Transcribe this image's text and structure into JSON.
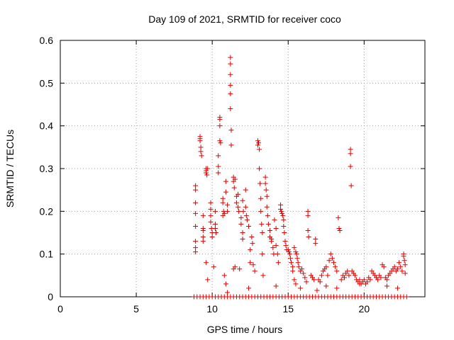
{
  "chart_data": {
    "type": "scatter",
    "title": "Day 109 of 2021, SRMTID for receiver coco",
    "xlabel": "GPS time / hours",
    "ylabel": "SRMTID / TECUs",
    "xlim": [
      0,
      24
    ],
    "ylim": [
      0,
      0.6
    ],
    "xticks": [
      0,
      5,
      10,
      15,
      20
    ],
    "xtick_labels": [
      "0",
      "5",
      "10",
      "15",
      "20"
    ],
    "yticks": [
      0,
      0.1,
      0.2,
      0.3,
      0.4,
      0.5,
      0.6
    ],
    "ytick_labels": [
      "0",
      "0.1",
      "0.2",
      "0.3",
      "0.4",
      "0.5",
      "0.6"
    ],
    "grid": true,
    "marker": "+",
    "color": "#e00000",
    "series": [
      {
        "name": "SRMTID",
        "points": [
          [
            8.9,
            0.26
          ],
          [
            8.9,
            0.25
          ],
          [
            8.9,
            0.22
          ],
          [
            8.9,
            0.195
          ],
          [
            8.9,
            0.165
          ],
          [
            8.9,
            0.13
          ],
          [
            8.9,
            0.115
          ],
          [
            8.9,
            0.105
          ],
          [
            9.2,
            0.375
          ],
          [
            9.2,
            0.37
          ],
          [
            9.2,
            0.365
          ],
          [
            9.25,
            0.35
          ],
          [
            9.25,
            0.34
          ],
          [
            9.3,
            0.33
          ],
          [
            9.4,
            0.19
          ],
          [
            9.4,
            0.16
          ],
          [
            9.4,
            0.155
          ],
          [
            9.4,
            0.14
          ],
          [
            9.4,
            0.13
          ],
          [
            9.6,
            0.3
          ],
          [
            9.6,
            0.295
          ],
          [
            9.6,
            0.29
          ],
          [
            9.65,
            0.285
          ],
          [
            9.7,
            0.3
          ],
          [
            9.6,
            0.08
          ],
          [
            9.9,
            0.22
          ],
          [
            9.9,
            0.205
          ],
          [
            9.9,
            0.19
          ],
          [
            9.9,
            0.175
          ],
          [
            9.95,
            0.16
          ],
          [
            10.0,
            0.15
          ],
          [
            10.0,
            0.14
          ],
          [
            10.1,
            0.07
          ],
          [
            10.2,
            0.2
          ],
          [
            10.2,
            0.17
          ],
          [
            10.2,
            0.16
          ],
          [
            10.25,
            0.15
          ],
          [
            10.4,
            0.33
          ],
          [
            10.4,
            0.305
          ],
          [
            10.4,
            0.29
          ],
          [
            10.5,
            0.42
          ],
          [
            10.5,
            0.415
          ],
          [
            10.5,
            0.4
          ],
          [
            10.5,
            0.365
          ],
          [
            10.55,
            0.36
          ],
          [
            10.7,
            0.23
          ],
          [
            10.7,
            0.22
          ],
          [
            10.75,
            0.2
          ],
          [
            10.7,
            0.19
          ],
          [
            10.8,
            0.195
          ],
          [
            10.8,
            0.05
          ],
          [
            10.9,
            0.27
          ],
          [
            10.9,
            0.245
          ],
          [
            11.0,
            0.215
          ],
          [
            11.0,
            0.2
          ],
          [
            11.0,
            0.01
          ],
          [
            11.2,
            0.56
          ],
          [
            11.2,
            0.545
          ],
          [
            11.2,
            0.52
          ],
          [
            11.2,
            0.495
          ],
          [
            11.2,
            0.475
          ],
          [
            11.2,
            0.44
          ],
          [
            11.25,
            0.39
          ],
          [
            11.25,
            0.355
          ],
          [
            11.4,
            0.28
          ],
          [
            11.4,
            0.27
          ],
          [
            11.45,
            0.255
          ],
          [
            11.5,
            0.275
          ],
          [
            11.5,
            0.07
          ],
          [
            11.4,
            0.065
          ],
          [
            11.6,
            0.235
          ],
          [
            11.6,
            0.22
          ],
          [
            11.7,
            0.24
          ],
          [
            11.7,
            0.21
          ],
          [
            11.75,
            0.2
          ],
          [
            11.8,
            0.065
          ],
          [
            11.9,
            0.185
          ],
          [
            11.9,
            0.17
          ],
          [
            12.0,
            0.15
          ],
          [
            12.0,
            0.135
          ],
          [
            12.0,
            0.225
          ],
          [
            12.05,
            0.2
          ],
          [
            12.2,
            0.25
          ],
          [
            12.2,
            0.21
          ],
          [
            12.25,
            0.19
          ],
          [
            12.3,
            0.18
          ],
          [
            12.4,
            0.165
          ],
          [
            12.5,
            0.11
          ],
          [
            12.5,
            0.08
          ],
          [
            12.6,
            0.14
          ],
          [
            12.65,
            0.125
          ],
          [
            12.7,
            0.075
          ],
          [
            12.8,
            0.06
          ],
          [
            13.0,
            0.365
          ],
          [
            13.0,
            0.355
          ],
          [
            13.05,
            0.36
          ],
          [
            13.1,
            0.345
          ],
          [
            13.1,
            0.3
          ],
          [
            13.15,
            0.265
          ],
          [
            13.2,
            0.23
          ],
          [
            13.2,
            0.2
          ],
          [
            13.25,
            0.17
          ],
          [
            13.3,
            0.15
          ],
          [
            13.3,
            0.1
          ],
          [
            13.35,
            0.05
          ],
          [
            13.5,
            0.28
          ],
          [
            13.5,
            0.265
          ],
          [
            13.55,
            0.25
          ],
          [
            13.6,
            0.235
          ],
          [
            13.6,
            0.21
          ],
          [
            13.65,
            0.19
          ],
          [
            13.7,
            0.17
          ],
          [
            13.8,
            0.155
          ],
          [
            13.8,
            0.14
          ],
          [
            13.9,
            0.135
          ],
          [
            13.9,
            0.13
          ],
          [
            14.0,
            0.115
          ],
          [
            14.05,
            0.1
          ],
          [
            14.1,
            0.18
          ],
          [
            14.2,
            0.16
          ],
          [
            14.2,
            0.12
          ],
          [
            14.3,
            0.1
          ],
          [
            14.35,
            0.08
          ],
          [
            14.5,
            0.215
          ],
          [
            14.5,
            0.205
          ],
          [
            14.55,
            0.2
          ],
          [
            14.6,
            0.195
          ],
          [
            14.65,
            0.19
          ],
          [
            14.7,
            0.18
          ],
          [
            14.7,
            0.165
          ],
          [
            14.75,
            0.15
          ],
          [
            14.8,
            0.13
          ],
          [
            14.85,
            0.12
          ],
          [
            14.9,
            0.11
          ],
          [
            15.0,
            0.11
          ],
          [
            15.05,
            0.105
          ],
          [
            15.1,
            0.1
          ],
          [
            15.15,
            0.09
          ],
          [
            15.2,
            0.08
          ],
          [
            15.3,
            0.07
          ],
          [
            15.3,
            0.06
          ],
          [
            15.4,
            0.04
          ],
          [
            15.5,
            0.03
          ],
          [
            15.4,
            0.115
          ],
          [
            15.5,
            0.105
          ],
          [
            15.55,
            0.1
          ],
          [
            15.6,
            0.09
          ],
          [
            15.65,
            0.08
          ],
          [
            15.7,
            0.07
          ],
          [
            15.8,
            0.06
          ],
          [
            15.9,
            0.065
          ],
          [
            16.0,
            0.055
          ],
          [
            16.1,
            0.045
          ],
          [
            16.2,
            0.035
          ],
          [
            16.3,
            0.2
          ],
          [
            16.3,
            0.19
          ],
          [
            16.3,
            0.155
          ],
          [
            16.35,
            0.14
          ],
          [
            16.5,
            0.05
          ],
          [
            16.6,
            0.045
          ],
          [
            16.7,
            0.04
          ],
          [
            16.8,
            0.135
          ],
          [
            16.8,
            0.125
          ],
          [
            17.0,
            0.04
          ],
          [
            17.1,
            0.035
          ],
          [
            17.2,
            0.05
          ],
          [
            17.3,
            0.06
          ],
          [
            17.4,
            0.065
          ],
          [
            17.5,
            0.07
          ],
          [
            17.6,
            0.05
          ],
          [
            17.7,
            0.085
          ],
          [
            17.8,
            0.1
          ],
          [
            17.9,
            0.09
          ],
          [
            18.0,
            0.08
          ],
          [
            18.1,
            0.07
          ],
          [
            18.2,
            0.06
          ],
          [
            18.3,
            0.185
          ],
          [
            18.35,
            0.16
          ],
          [
            18.4,
            0.155
          ],
          [
            18.5,
            0.04
          ],
          [
            18.6,
            0.05
          ],
          [
            18.7,
            0.045
          ],
          [
            18.8,
            0.055
          ],
          [
            18.9,
            0.06
          ],
          [
            19.0,
            0.05
          ],
          [
            19.1,
            0.345
          ],
          [
            19.1,
            0.335
          ],
          [
            19.1,
            0.305
          ],
          [
            19.15,
            0.26
          ],
          [
            19.2,
            0.06
          ],
          [
            19.3,
            0.055
          ],
          [
            19.4,
            0.05
          ],
          [
            19.5,
            0.04
          ],
          [
            19.6,
            0.035
          ],
          [
            19.7,
            0.04
          ],
          [
            19.8,
            0.03
          ],
          [
            19.9,
            0.035
          ],
          [
            20.0,
            0.04
          ],
          [
            20.1,
            0.03
          ],
          [
            20.2,
            0.035
          ],
          [
            20.3,
            0.045
          ],
          [
            20.4,
            0.04
          ],
          [
            20.5,
            0.06
          ],
          [
            20.6,
            0.055
          ],
          [
            20.7,
            0.05
          ],
          [
            20.8,
            0.045
          ],
          [
            20.9,
            0.04
          ],
          [
            21.0,
            0.05
          ],
          [
            21.1,
            0.045
          ],
          [
            21.2,
            0.075
          ],
          [
            21.3,
            0.07
          ],
          [
            21.4,
            0.045
          ],
          [
            21.5,
            0.04
          ],
          [
            21.6,
            0.05
          ],
          [
            21.7,
            0.055
          ],
          [
            21.8,
            0.06
          ],
          [
            21.9,
            0.065
          ],
          [
            22.0,
            0.07
          ],
          [
            22.1,
            0.06
          ],
          [
            22.2,
            0.065
          ],
          [
            22.3,
            0.08
          ],
          [
            22.4,
            0.07
          ],
          [
            22.5,
            0.06
          ],
          [
            22.6,
            0.1
          ],
          [
            22.6,
            0.095
          ],
          [
            22.65,
            0.085
          ],
          [
            22.7,
            0.075
          ],
          [
            22.7,
            0.055
          ],
          [
            9.7,
            0.04
          ],
          [
            10.9,
            0.03
          ],
          [
            12.4,
            0.02
          ],
          [
            14.2,
            0.025
          ],
          [
            15.8,
            0.02
          ],
          [
            16.9,
            0.015
          ],
          [
            17.5,
            0.025
          ],
          [
            18.2,
            0.02
          ],
          [
            19.7,
            0.03
          ],
          [
            21.5,
            0.025
          ],
          [
            22.2,
            0.02
          ],
          [
            8.8,
            0
          ],
          [
            9.0,
            0
          ],
          [
            9.2,
            0
          ],
          [
            9.4,
            0
          ],
          [
            9.6,
            0
          ],
          [
            9.8,
            0
          ],
          [
            10.0,
            0
          ],
          [
            10.2,
            0
          ],
          [
            10.4,
            0
          ],
          [
            10.6,
            0
          ],
          [
            10.8,
            0
          ],
          [
            11.0,
            0
          ],
          [
            11.2,
            0
          ],
          [
            11.4,
            0
          ],
          [
            11.6,
            0
          ],
          [
            11.8,
            0
          ],
          [
            12.0,
            0
          ],
          [
            12.2,
            0
          ],
          [
            12.4,
            0
          ],
          [
            12.6,
            0
          ],
          [
            12.8,
            0
          ],
          [
            13.0,
            0
          ],
          [
            13.2,
            0
          ],
          [
            13.4,
            0
          ],
          [
            13.6,
            0
          ],
          [
            13.8,
            0
          ],
          [
            14.0,
            0
          ],
          [
            14.2,
            0
          ],
          [
            14.4,
            0
          ],
          [
            14.6,
            0
          ],
          [
            14.8,
            0
          ],
          [
            15.0,
            0
          ],
          [
            15.2,
            0
          ],
          [
            15.4,
            0
          ],
          [
            15.6,
            0
          ],
          [
            15.8,
            0
          ],
          [
            16.0,
            0
          ],
          [
            16.2,
            0
          ],
          [
            16.4,
            0
          ],
          [
            16.6,
            0
          ],
          [
            16.8,
            0
          ],
          [
            17.0,
            0
          ],
          [
            17.2,
            0
          ],
          [
            17.4,
            0
          ],
          [
            17.6,
            0
          ],
          [
            17.8,
            0
          ],
          [
            18.0,
            0
          ],
          [
            18.2,
            0
          ],
          [
            18.4,
            0
          ],
          [
            18.6,
            0
          ],
          [
            18.8,
            0
          ],
          [
            19.0,
            0
          ],
          [
            19.2,
            0
          ],
          [
            19.4,
            0
          ],
          [
            19.6,
            0
          ],
          [
            19.8,
            0
          ],
          [
            20.0,
            0
          ],
          [
            20.2,
            0
          ],
          [
            20.4,
            0
          ],
          [
            20.6,
            0
          ],
          [
            20.8,
            0
          ],
          [
            21.0,
            0
          ],
          [
            21.2,
            0
          ],
          [
            21.4,
            0
          ],
          [
            21.6,
            0
          ],
          [
            21.8,
            0
          ],
          [
            22.0,
            0
          ],
          [
            22.2,
            0
          ],
          [
            22.4,
            0
          ],
          [
            22.6,
            0
          ],
          [
            22.8,
            0
          ]
        ]
      }
    ]
  }
}
